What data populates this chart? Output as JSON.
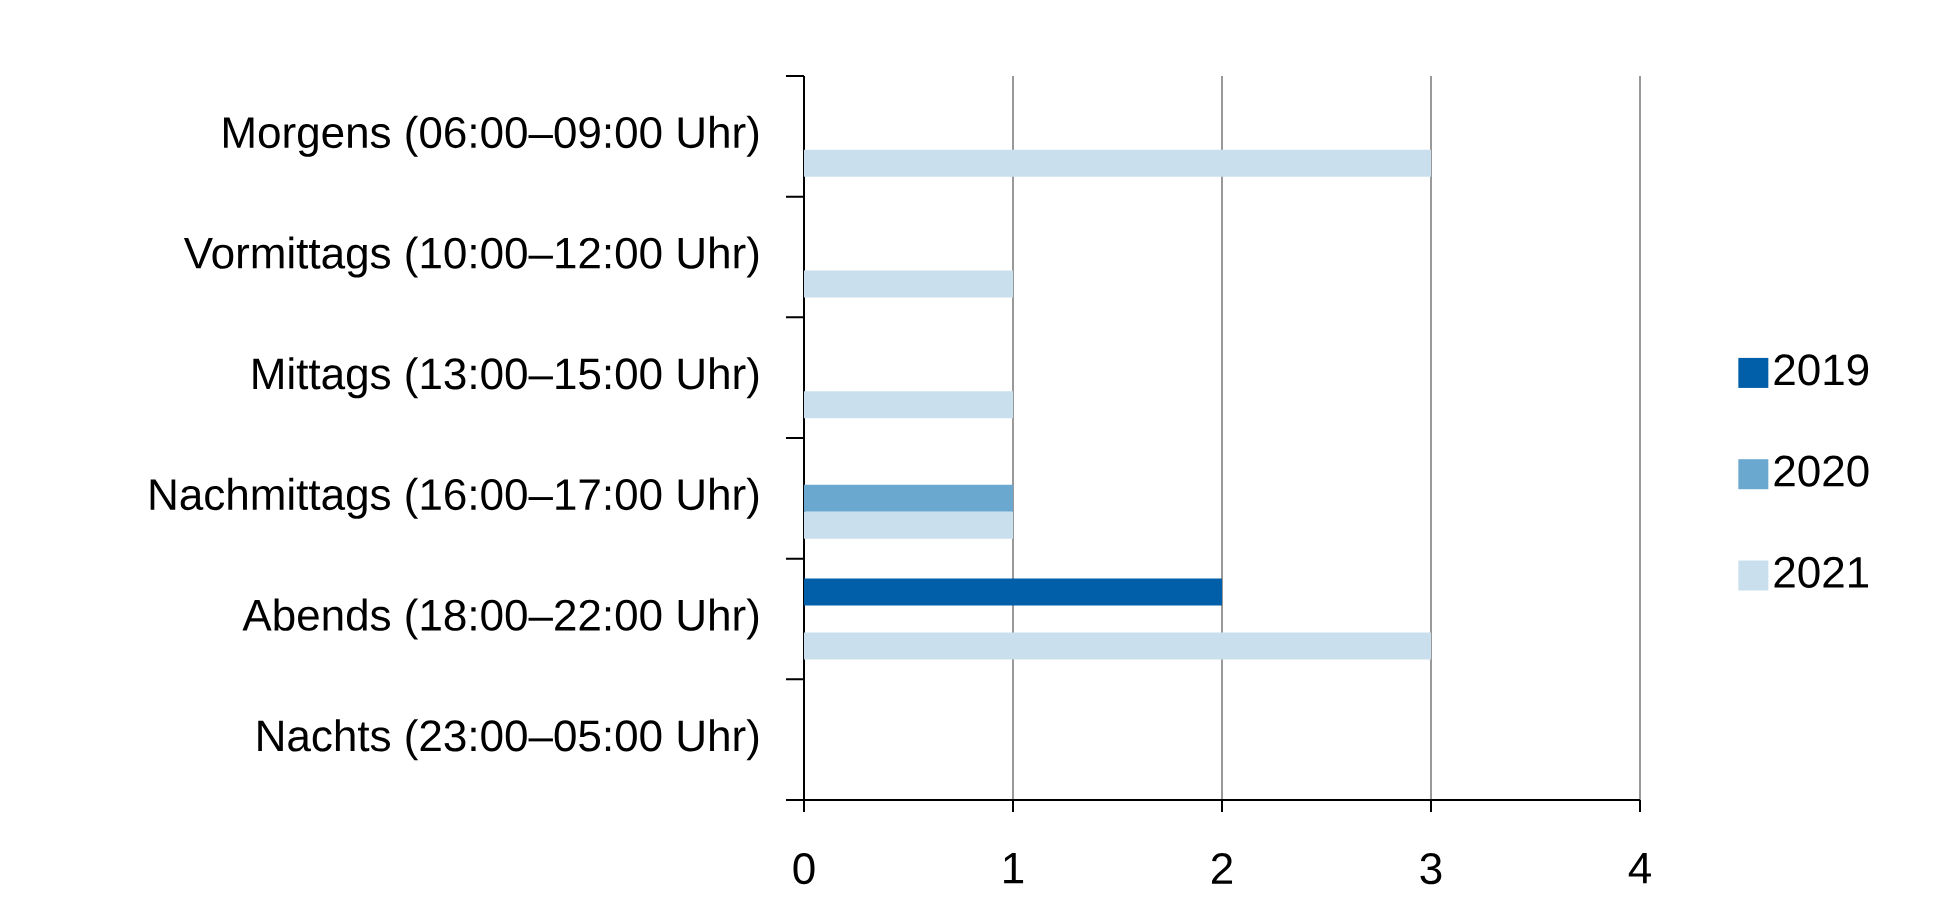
{
  "chart_data": {
    "type": "bar",
    "orientation": "horizontal",
    "categories": [
      "Morgens (06:00–09:00 Uhr)",
      "Vormittags (10:00–12:00 Uhr)",
      "Mittags (13:00–15:00 Uhr)",
      "Nachmittags (16:00–17:00 Uhr)",
      "Abends (18:00–22:00 Uhr)",
      "Nachts (23:00–05:00 Uhr)"
    ],
    "series": [
      {
        "name": "2019",
        "color": "#005fa8",
        "values": [
          0,
          0,
          0,
          0,
          2,
          0
        ]
      },
      {
        "name": "2020",
        "color": "#6ba8d0",
        "values": [
          0,
          0,
          0,
          1,
          0,
          0
        ]
      },
      {
        "name": "2021",
        "color": "#c9dfed",
        "values": [
          3,
          1,
          1,
          1,
          3,
          0
        ]
      }
    ],
    "xlim": [
      0,
      4
    ],
    "xticks": [
      0,
      1,
      2,
      3,
      4
    ],
    "grid": "x",
    "legend": "right"
  }
}
